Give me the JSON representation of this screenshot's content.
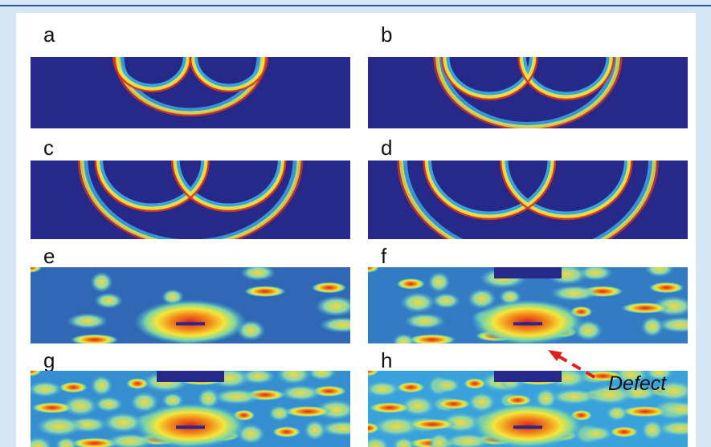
{
  "panels": [
    {
      "label": "a"
    },
    {
      "label": "b"
    },
    {
      "label": "c"
    },
    {
      "label": "d"
    },
    {
      "label": "e"
    },
    {
      "label": "f"
    },
    {
      "label": "g"
    },
    {
      "label": "h"
    }
  ],
  "annotation": "Defect"
}
